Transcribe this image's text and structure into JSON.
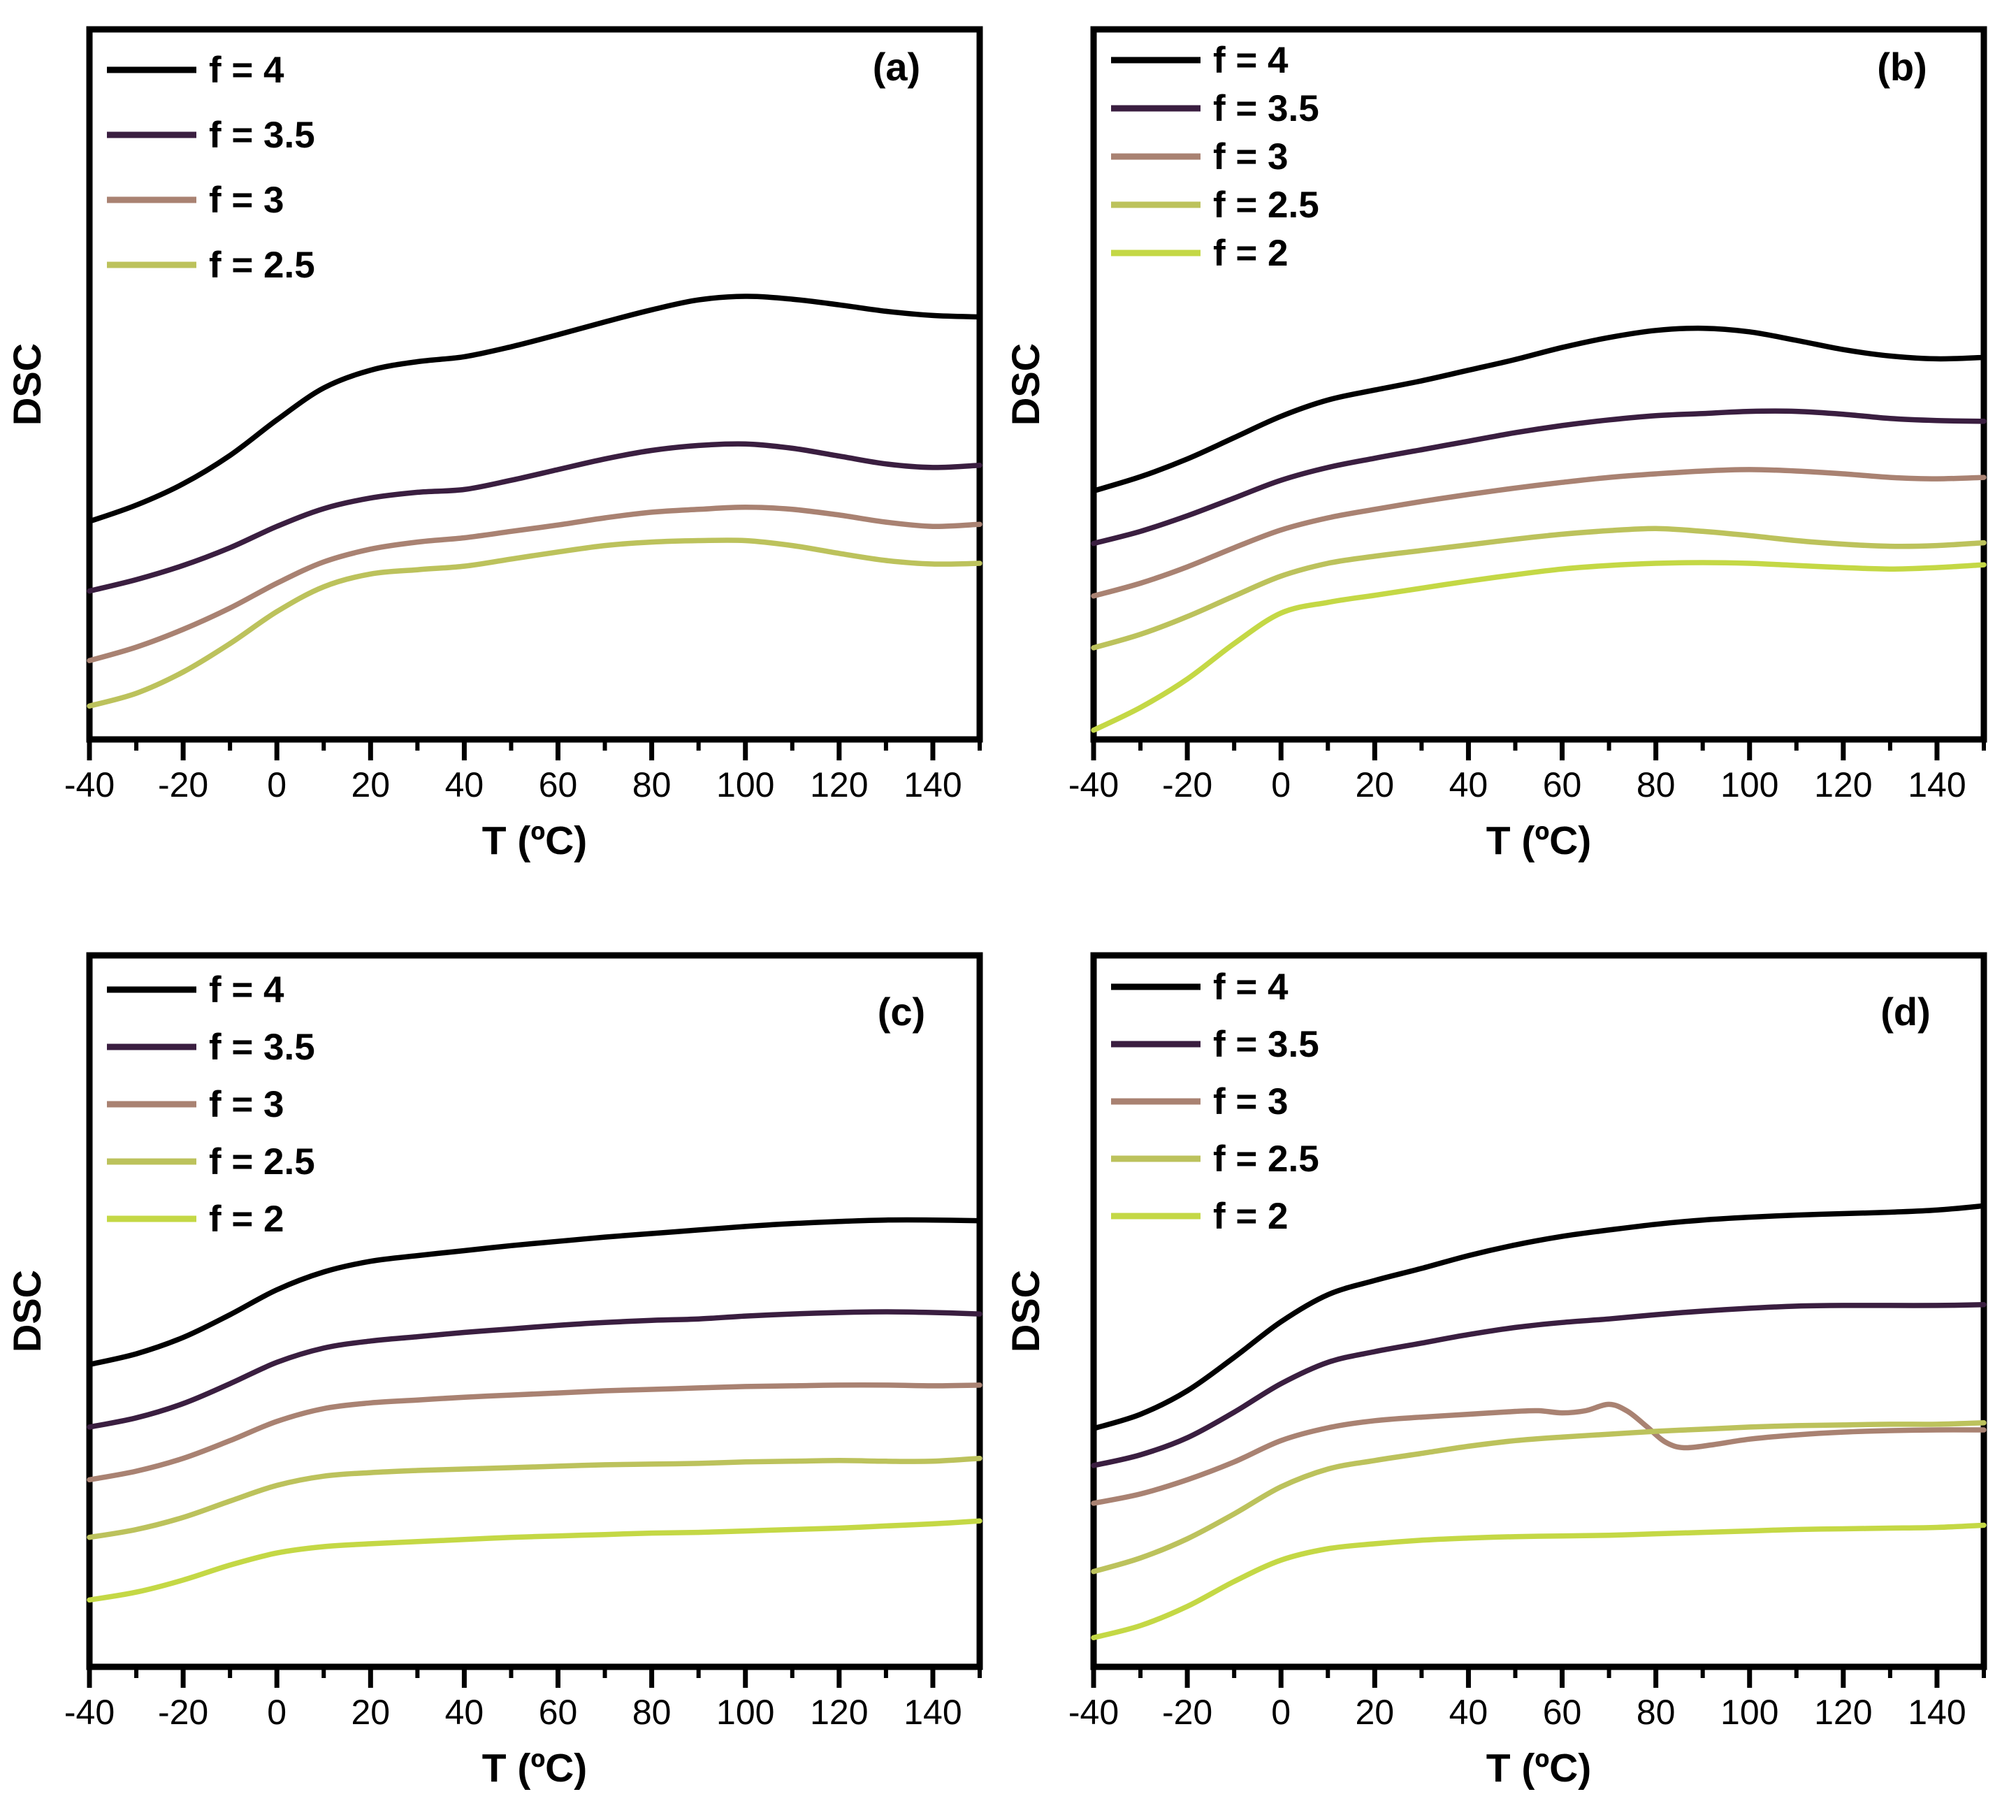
{
  "figure_background": "#ffffff",
  "axis_color": "#000000",
  "chart_data": [
    {
      "type": "line",
      "panel_label": "(a)",
      "xlabel": "T (ºC)",
      "ylabel": "DSC",
      "xlim": [
        -40,
        150
      ],
      "ylim": [
        0,
        100
      ],
      "grid": false,
      "legend_position": "top-left",
      "x_ticks": [
        -40,
        -20,
        0,
        20,
        40,
        60,
        80,
        100,
        120,
        140
      ],
      "x_tick_labels": [
        "-40",
        "-20",
        "0",
        "20",
        "40",
        "60",
        "80",
        "100",
        "120",
        "140"
      ],
      "x_minor_ticks": [
        -30,
        -10,
        10,
        30,
        50,
        70,
        90,
        110,
        130,
        150
      ],
      "series": [
        {
          "name": "f = 4",
          "color": "#000000",
          "x": [
            -40,
            -30,
            -20,
            -10,
            0,
            10,
            20,
            30,
            40,
            50,
            60,
            70,
            80,
            90,
            100,
            110,
            120,
            130,
            140,
            150
          ],
          "y": [
            30.7,
            33.0,
            36.0,
            40.0,
            45.0,
            49.5,
            52.0,
            53.2,
            53.9,
            55.3,
            57.0,
            58.8,
            60.5,
            61.9,
            62.4,
            62.0,
            61.2,
            60.3,
            59.7,
            59.5
          ]
        },
        {
          "name": "f = 3.5",
          "color": "#3a1e40",
          "x": [
            -40,
            -30,
            -20,
            -10,
            0,
            10,
            20,
            30,
            40,
            50,
            60,
            70,
            80,
            90,
            100,
            110,
            120,
            130,
            140,
            150
          ],
          "y": [
            20.9,
            22.5,
            24.5,
            27.0,
            30.0,
            32.5,
            34.0,
            34.8,
            35.2,
            36.5,
            38.0,
            39.5,
            40.7,
            41.4,
            41.6,
            41.0,
            39.9,
            38.8,
            38.3,
            38.6
          ]
        },
        {
          "name": "f = 3",
          "color": "#a98272",
          "x": [
            -40,
            -30,
            -20,
            -10,
            0,
            10,
            20,
            30,
            40,
            50,
            60,
            70,
            80,
            90,
            100,
            110,
            120,
            130,
            140,
            150
          ],
          "y": [
            11.1,
            13.0,
            15.5,
            18.5,
            22.0,
            25.0,
            26.8,
            27.8,
            28.4,
            29.3,
            30.2,
            31.2,
            32.0,
            32.4,
            32.7,
            32.4,
            31.6,
            30.6,
            30.0,
            30.3
          ]
        },
        {
          "name": "f = 2.5",
          "color": "#bcc25c",
          "x": [
            -40,
            -30,
            -20,
            -10,
            0,
            10,
            20,
            30,
            40,
            50,
            60,
            70,
            80,
            90,
            100,
            110,
            120,
            130,
            140,
            150
          ],
          "y": [
            4.7,
            6.5,
            9.5,
            13.5,
            18.0,
            21.5,
            23.3,
            23.9,
            24.4,
            25.4,
            26.4,
            27.3,
            27.8,
            28.0,
            28.0,
            27.3,
            26.2,
            25.2,
            24.7,
            24.8
          ]
        }
      ]
    },
    {
      "type": "line",
      "panel_label": "(b)",
      "xlabel": "T (ºC)",
      "ylabel": "DSC",
      "xlim": [
        -40,
        150
      ],
      "ylim": [
        0,
        100
      ],
      "grid": false,
      "legend_position": "top-left",
      "x_ticks": [
        -40,
        -20,
        0,
        20,
        40,
        60,
        80,
        100,
        120,
        140
      ],
      "x_tick_labels": [
        "-40",
        "-20",
        "0",
        "20",
        "40",
        "60",
        "80",
        "100",
        "120",
        "140"
      ],
      "x_minor_ticks": [
        -30,
        -10,
        10,
        30,
        50,
        70,
        90,
        110,
        130,
        150
      ],
      "series": [
        {
          "name": "f = 4",
          "color": "#000000",
          "x": [
            -40,
            -30,
            -20,
            -10,
            0,
            10,
            20,
            30,
            40,
            50,
            60,
            70,
            80,
            90,
            100,
            110,
            120,
            130,
            140,
            150
          ],
          "y": [
            35.0,
            37.0,
            39.5,
            42.5,
            45.5,
            47.8,
            49.2,
            50.5,
            52.0,
            53.5,
            55.2,
            56.6,
            57.6,
            57.9,
            57.4,
            56.2,
            54.9,
            54.0,
            53.6,
            53.8
          ]
        },
        {
          "name": "f = 3.5",
          "color": "#3a1e40",
          "x": [
            -40,
            -30,
            -20,
            -10,
            0,
            10,
            20,
            30,
            40,
            50,
            60,
            70,
            80,
            90,
            100,
            110,
            120,
            130,
            140,
            150
          ],
          "y": [
            27.6,
            29.3,
            31.5,
            34.0,
            36.5,
            38.3,
            39.6,
            40.8,
            42.0,
            43.2,
            44.2,
            45.0,
            45.6,
            45.9,
            46.2,
            46.2,
            45.8,
            45.2,
            44.9,
            44.8
          ]
        },
        {
          "name": "f = 3",
          "color": "#a98272",
          "x": [
            -40,
            -30,
            -20,
            -10,
            0,
            10,
            20,
            30,
            40,
            50,
            60,
            70,
            80,
            90,
            100,
            110,
            120,
            130,
            140,
            150
          ],
          "y": [
            20.2,
            22.0,
            24.3,
            27.0,
            29.5,
            31.2,
            32.4,
            33.5,
            34.5,
            35.4,
            36.2,
            36.9,
            37.4,
            37.8,
            38.0,
            37.8,
            37.4,
            36.9,
            36.7,
            36.9
          ]
        },
        {
          "name": "f = 2.5",
          "color": "#bcc25c",
          "x": [
            -40,
            -30,
            -20,
            -10,
            0,
            10,
            20,
            30,
            40,
            50,
            60,
            70,
            80,
            90,
            100,
            110,
            120,
            130,
            140,
            150
          ],
          "y": [
            12.9,
            14.8,
            17.3,
            20.2,
            23.0,
            24.8,
            25.8,
            26.6,
            27.4,
            28.2,
            28.9,
            29.4,
            29.7,
            29.3,
            28.7,
            28.0,
            27.5,
            27.2,
            27.3,
            27.7
          ]
        },
        {
          "name": "f = 2",
          "color": "#c4d845",
          "x": [
            -40,
            -30,
            -20,
            -10,
            0,
            10,
            20,
            30,
            40,
            50,
            60,
            70,
            80,
            90,
            100,
            110,
            120,
            130,
            140,
            150
          ],
          "y": [
            1.3,
            4.5,
            8.5,
            13.5,
            17.8,
            19.3,
            20.3,
            21.3,
            22.3,
            23.2,
            24.0,
            24.5,
            24.8,
            24.9,
            24.8,
            24.5,
            24.2,
            24.0,
            24.2,
            24.6
          ]
        }
      ]
    },
    {
      "type": "line",
      "panel_label": "(c)",
      "xlabel": "T (ºC)",
      "ylabel": "DSC",
      "xlim": [
        -40,
        150
      ],
      "ylim": [
        0,
        100
      ],
      "grid": false,
      "legend_position": "top-left",
      "x_ticks": [
        -40,
        -20,
        0,
        20,
        40,
        60,
        80,
        100,
        120,
        140
      ],
      "x_tick_labels": [
        "-40",
        "-20",
        "0",
        "20",
        "40",
        "60",
        "80",
        "100",
        "120",
        "140"
      ],
      "x_minor_ticks": [
        -30,
        -10,
        10,
        30,
        50,
        70,
        90,
        110,
        130,
        150
      ],
      "series": [
        {
          "name": "f = 4",
          "color": "#000000",
          "x": [
            -40,
            -30,
            -20,
            -10,
            0,
            10,
            20,
            30,
            40,
            50,
            60,
            70,
            80,
            90,
            100,
            110,
            120,
            130,
            140,
            150
          ],
          "y": [
            42.5,
            44.0,
            46.3,
            49.5,
            53.0,
            55.5,
            57.0,
            57.8,
            58.5,
            59.2,
            59.8,
            60.4,
            60.9,
            61.4,
            61.9,
            62.3,
            62.6,
            62.8,
            62.8,
            62.7
          ]
        },
        {
          "name": "f = 3.5",
          "color": "#3a1e40",
          "x": [
            -40,
            -30,
            -20,
            -10,
            0,
            10,
            20,
            30,
            40,
            50,
            60,
            70,
            80,
            90,
            100,
            110,
            120,
            130,
            140,
            150
          ],
          "y": [
            33.7,
            35.0,
            37.0,
            39.8,
            42.8,
            44.8,
            45.8,
            46.4,
            47.0,
            47.5,
            48.0,
            48.4,
            48.7,
            48.9,
            49.3,
            49.6,
            49.8,
            49.9,
            49.8,
            49.6
          ]
        },
        {
          "name": "f = 3",
          "color": "#a98272",
          "x": [
            -40,
            -30,
            -20,
            -10,
            0,
            10,
            20,
            30,
            40,
            50,
            60,
            70,
            80,
            90,
            100,
            110,
            120,
            130,
            140,
            150
          ],
          "y": [
            26.3,
            27.5,
            29.3,
            31.8,
            34.5,
            36.3,
            37.1,
            37.5,
            37.9,
            38.2,
            38.5,
            38.8,
            39.0,
            39.2,
            39.4,
            39.5,
            39.6,
            39.6,
            39.5,
            39.6
          ]
        },
        {
          "name": "f = 2.5",
          "color": "#bcc25c",
          "x": [
            -40,
            -30,
            -20,
            -10,
            0,
            10,
            20,
            30,
            40,
            50,
            60,
            70,
            80,
            90,
            100,
            110,
            120,
            130,
            140,
            150
          ],
          "y": [
            18.2,
            19.3,
            21.0,
            23.3,
            25.5,
            26.8,
            27.3,
            27.6,
            27.8,
            28.0,
            28.2,
            28.4,
            28.5,
            28.6,
            28.8,
            28.9,
            29.0,
            28.9,
            28.9,
            29.3
          ]
        },
        {
          "name": "f = 2",
          "color": "#c4d845",
          "x": [
            -40,
            -30,
            -20,
            -10,
            0,
            10,
            20,
            30,
            40,
            50,
            60,
            70,
            80,
            90,
            100,
            110,
            120,
            130,
            140,
            150
          ],
          "y": [
            9.4,
            10.5,
            12.2,
            14.3,
            16.0,
            16.9,
            17.3,
            17.6,
            17.9,
            18.2,
            18.4,
            18.6,
            18.8,
            18.9,
            19.1,
            19.3,
            19.5,
            19.8,
            20.1,
            20.5
          ]
        }
      ]
    },
    {
      "type": "line",
      "panel_label": "(d)",
      "xlabel": "T (ºC)",
      "ylabel": "DSC",
      "xlim": [
        -40,
        150
      ],
      "ylim": [
        0,
        100
      ],
      "grid": false,
      "legend_position": "top-left",
      "x_ticks": [
        -40,
        -20,
        0,
        20,
        40,
        60,
        80,
        100,
        120,
        140
      ],
      "x_tick_labels": [
        "-40",
        "-20",
        "0",
        "20",
        "40",
        "60",
        "80",
        "100",
        "120",
        "140"
      ],
      "x_minor_ticks": [
        -30,
        -10,
        10,
        30,
        50,
        70,
        90,
        110,
        130,
        150
      ],
      "series": [
        {
          "name": "f = 4",
          "color": "#000000",
          "x": [
            -40,
            -30,
            -20,
            -10,
            0,
            10,
            20,
            30,
            40,
            50,
            60,
            70,
            80,
            90,
            100,
            110,
            120,
            130,
            140,
            150
          ],
          "y": [
            33.5,
            35.5,
            38.8,
            43.5,
            48.5,
            52.3,
            54.3,
            56.0,
            57.8,
            59.3,
            60.5,
            61.4,
            62.2,
            62.8,
            63.2,
            63.5,
            63.7,
            63.9,
            64.2,
            64.8
          ]
        },
        {
          "name": "f = 3.5",
          "color": "#3a1e40",
          "x": [
            -40,
            -30,
            -20,
            -10,
            0,
            10,
            20,
            30,
            40,
            50,
            60,
            70,
            80,
            90,
            100,
            110,
            120,
            130,
            140,
            150
          ],
          "y": [
            28.3,
            29.8,
            32.2,
            35.8,
            39.8,
            42.8,
            44.3,
            45.5,
            46.7,
            47.7,
            48.4,
            48.9,
            49.5,
            50.0,
            50.4,
            50.7,
            50.8,
            50.8,
            50.8,
            50.9
          ]
        },
        {
          "name": "f = 3",
          "color": "#a98272",
          "x": [
            -40,
            -30,
            -20,
            -10,
            0,
            10,
            20,
            30,
            40,
            50,
            55,
            60,
            65,
            70,
            74,
            78,
            82,
            86,
            92,
            100,
            110,
            120,
            130,
            140,
            150
          ],
          "y": [
            23.0,
            24.3,
            26.3,
            28.8,
            31.8,
            33.6,
            34.6,
            35.1,
            35.5,
            35.9,
            36.0,
            35.7,
            36.0,
            36.9,
            35.9,
            33.8,
            31.6,
            30.8,
            31.2,
            32.0,
            32.6,
            33.0,
            33.2,
            33.3,
            33.3
          ]
        },
        {
          "name": "f = 2.5",
          "color": "#bcc25c",
          "x": [
            -40,
            -30,
            -20,
            -10,
            0,
            10,
            20,
            30,
            40,
            50,
            60,
            70,
            80,
            90,
            100,
            110,
            120,
            130,
            140,
            150
          ],
          "y": [
            13.4,
            15.3,
            18.0,
            21.5,
            25.3,
            27.8,
            29.0,
            30.0,
            31.0,
            31.8,
            32.3,
            32.7,
            33.1,
            33.4,
            33.7,
            33.9,
            34.0,
            34.1,
            34.1,
            34.3
          ]
        },
        {
          "name": "f = 2",
          "color": "#c4d845",
          "x": [
            -40,
            -30,
            -20,
            -10,
            0,
            10,
            20,
            30,
            40,
            50,
            60,
            70,
            80,
            90,
            100,
            110,
            120,
            130,
            140,
            150
          ],
          "y": [
            4.1,
            5.8,
            8.5,
            12.0,
            15.0,
            16.6,
            17.3,
            17.8,
            18.1,
            18.3,
            18.4,
            18.5,
            18.7,
            18.9,
            19.1,
            19.3,
            19.4,
            19.5,
            19.6,
            19.9
          ]
        }
      ]
    }
  ]
}
